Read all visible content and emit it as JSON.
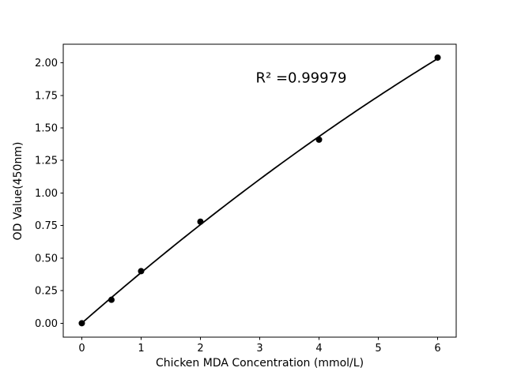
{
  "figure": {
    "background": "#ffffff",
    "foreground": "#000000"
  },
  "chart_data": {
    "type": "scatter",
    "title": "",
    "xlabel": "Chicken MDA Concentration (mmol/L)",
    "ylabel": "OD Value(450nm)",
    "x": [
      0,
      0.5,
      1,
      2,
      4,
      6
    ],
    "y": [
      0.0,
      0.18,
      0.4,
      0.78,
      1.41,
      2.04
    ],
    "fit_line": "quadratic",
    "annotation": {
      "text": "R² =0.99979",
      "x": 3.7,
      "y": 1.88
    },
    "xlim": [
      -0.313,
      6.313
    ],
    "ylim": [
      -0.107,
      2.143
    ],
    "xticks": [
      0,
      1,
      2,
      3,
      4,
      5,
      6
    ],
    "yticks": [
      0.0,
      0.25,
      0.5,
      0.75,
      1.0,
      1.25,
      1.5,
      1.75,
      2.0
    ],
    "ytick_decimals": 2,
    "grid": false,
    "legend": null,
    "marker_color": "#000000",
    "line_color": "#000000"
  }
}
